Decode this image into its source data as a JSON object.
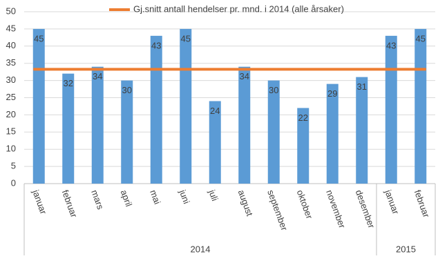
{
  "chart_data": {
    "type": "bar",
    "groups": [
      {
        "label": "2014",
        "categories": [
          "januar",
          "februar",
          "mars",
          "april",
          "mai",
          "juni",
          "juli",
          "august",
          "september",
          "oktober",
          "november",
          "desember"
        ]
      },
      {
        "label": "2015",
        "categories": [
          "januar",
          "februar"
        ]
      }
    ],
    "series": [
      {
        "type": "bar",
        "color": "#5b9bd5",
        "values": [
          45,
          32,
          34,
          30,
          43,
          45,
          24,
          34,
          30,
          22,
          29,
          31,
          43,
          45
        ]
      },
      {
        "type": "line",
        "name": "Gj.snitt antall hendelser pr. mnd. i 2014 (alle årsaker)",
        "color": "#ed7d31",
        "values": [
          33.25,
          33.25,
          33.25,
          33.25,
          33.25,
          33.25,
          33.25,
          33.25,
          33.25,
          33.25,
          33.25,
          33.25,
          33.25,
          33.25
        ]
      }
    ],
    "ylim": [
      0,
      50
    ],
    "yticks": [
      0,
      5,
      10,
      15,
      20,
      25,
      30,
      35,
      40,
      45,
      50
    ],
    "grid": true,
    "legend": "top"
  }
}
